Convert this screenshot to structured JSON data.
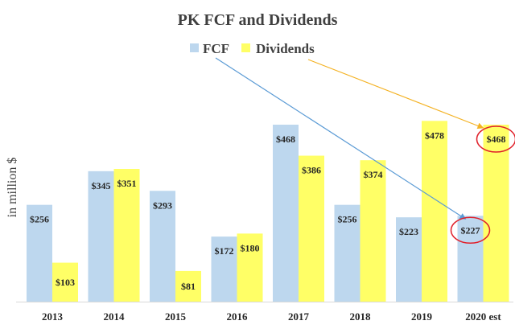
{
  "chart_data": {
    "type": "bar",
    "title": "PK FCF and Dividends",
    "ylabel": "in million $",
    "xlabel": "",
    "categories": [
      "2013",
      "2014",
      "2015",
      "2016",
      "2017",
      "2018",
      "2019",
      "2020 est"
    ],
    "series": [
      {
        "name": "FCF",
        "values": [
          256,
          345,
          293,
          172,
          468,
          256,
          223,
          227
        ],
        "labels": [
          "$256",
          "$345",
          "$293",
          "$172",
          "$468",
          "$256",
          "$223",
          "$227"
        ],
        "color": "#bdd7ee"
      },
      {
        "name": "Dividends",
        "values": [
          103,
          351,
          81,
          180,
          386,
          374,
          478,
          468
        ],
        "labels": [
          "$103",
          "$351",
          "$81",
          "$180",
          "$386",
          "$374",
          "$478",
          "$468"
        ],
        "color": "#ffff66"
      }
    ],
    "ylim": [
      0,
      500
    ],
    "grid": false,
    "legend": "top",
    "annotations": [
      {
        "type": "arrow",
        "from": "legend FCF",
        "to": "2020 est FCF",
        "color": "#5b9bd5"
      },
      {
        "type": "arrow",
        "from": "legend Dividends",
        "to": "2020 est Dividends",
        "color": "#f4b223"
      },
      {
        "type": "circle",
        "target": "2020 est FCF",
        "color": "#e0202a"
      },
      {
        "type": "circle",
        "target": "2020 est Dividends",
        "color": "#e0202a"
      }
    ]
  }
}
